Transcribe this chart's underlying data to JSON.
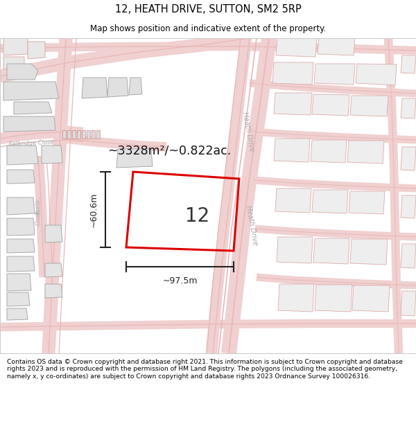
{
  "title": "12, HEATH DRIVE, SUTTON, SM2 5RP",
  "subtitle": "Map shows position and indicative extent of the property.",
  "footer": "Contains OS data © Crown copyright and database right 2021. This information is subject to Crown copyright and database rights 2023 and is reproduced with the permission of HM Land Registry. The polygons (including the associated geometry, namely x, y co-ordinates) are subject to Crown copyright and database rights 2023 Ordnance Survey 100026316.",
  "area_label": "~3328m²/~0.822ac.",
  "property_number": "12",
  "width_label": "~97.5m",
  "height_label": "~60.6m",
  "map_bg": "#ffffff",
  "road_color_main": "#e8b8b8",
  "road_color_light": "#f0d0d0",
  "road_color_outline": "#cc8888",
  "building_fill": "#e8e8e8",
  "building_outline": "#bbbbbb",
  "building_outline_red": "#ddaaaa",
  "property_outline_color": "#dd0000",
  "street_label_color": "#aaaaaa",
  "title_color": "#000000",
  "footer_color": "#000000",
  "map_border_color": "#cccccc",
  "header_bg": "#ffffff",
  "footer_bg": "#ffffff",
  "dim_color": "#222222"
}
